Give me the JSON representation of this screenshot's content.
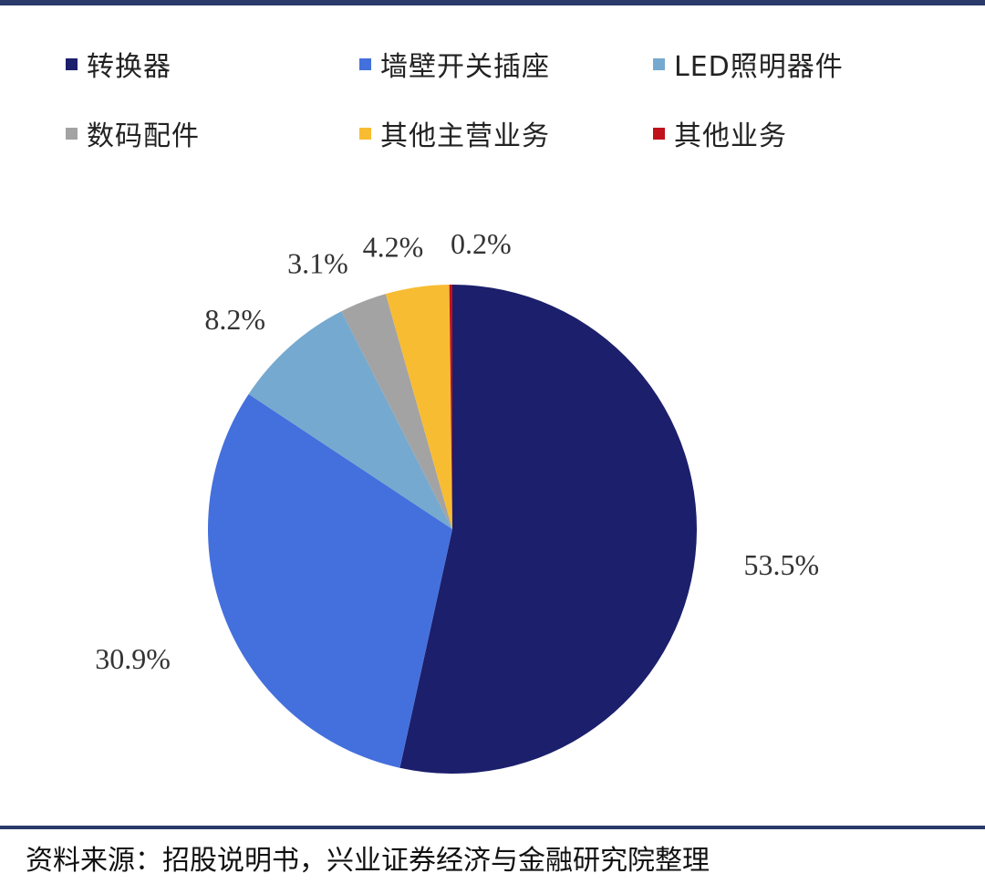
{
  "chart_data": {
    "type": "pie",
    "categories": [
      "转换器",
      "墙壁开关插座",
      "LED照明器件",
      "数码配件",
      "其他主营业务",
      "其他业务"
    ],
    "values": [
      53.5,
      30.9,
      8.2,
      3.1,
      4.2,
      0.2
    ],
    "data_labels": [
      "53.5%",
      "30.9%",
      "8.2%",
      "3.1%",
      "4.2%",
      "0.2%"
    ],
    "colors": [
      "#1c1f6b",
      "#4470dd",
      "#76a9cf",
      "#a3a3a3",
      "#f8bc33",
      "#c0111d"
    ],
    "title": "",
    "legend_position": "top",
    "start": "12 o'clock",
    "direction": "clockwise from 转换器, remaining slices counter-clockwise order as drawn"
  },
  "source": "资料来源：招股说明书，兴业证券经济与金融研究院整理"
}
